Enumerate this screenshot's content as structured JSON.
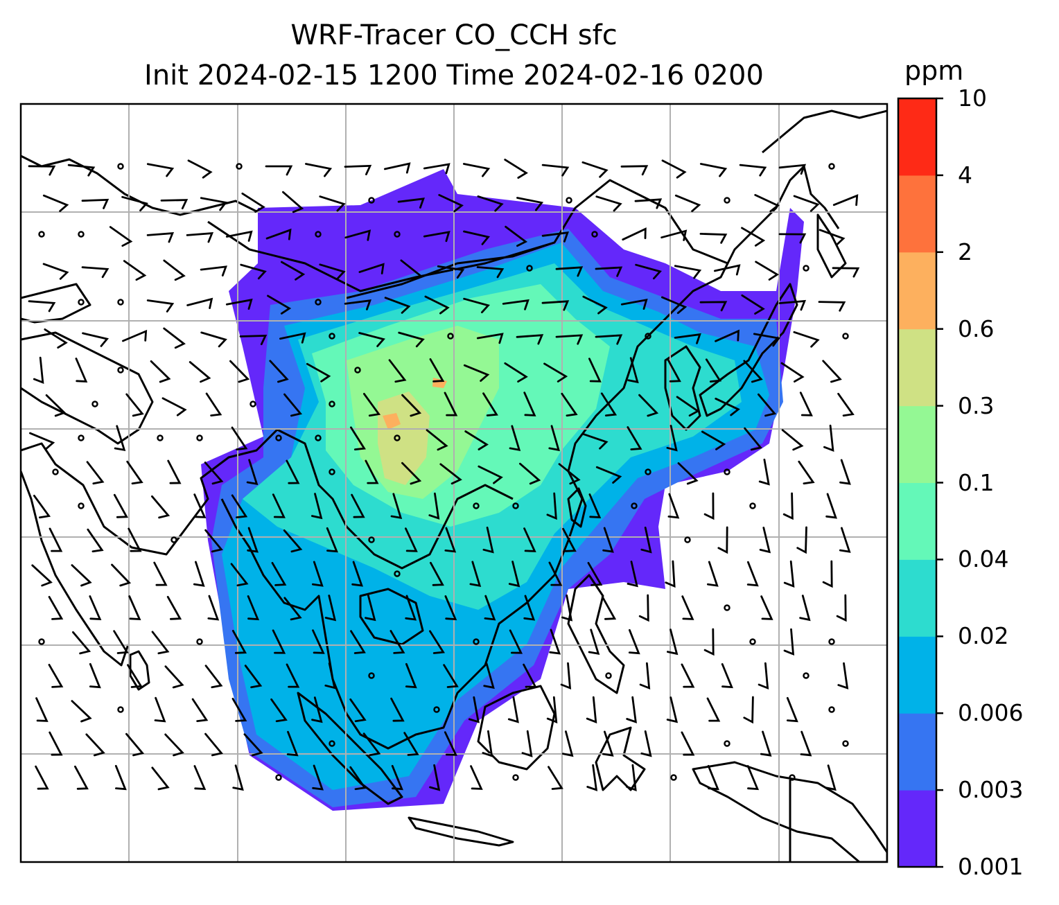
{
  "title": {
    "line1": "WRF-Tracer CO_CCH sfc",
    "line2": "Init 2024-02-15 1200 Time 2024-02-16 0200"
  },
  "colorbar": {
    "unit": "ppm",
    "levels": [
      "0.001",
      "0.003",
      "0.006",
      "0.02",
      "0.04",
      "0.1",
      "0.3",
      "0.6",
      "2",
      "4",
      "10"
    ],
    "colors": [
      "#6428fa",
      "#3675f2",
      "#00b2e8",
      "#2ddccf",
      "#64f8b8",
      "#94f894",
      "#cfe184",
      "#fdb05e",
      "#fe723c",
      "#fe2a16"
    ]
  },
  "map": {
    "gridlines": true,
    "variable": "CO_CCH tracer concentration (surface)",
    "overlay": "wind barbs",
    "coastline_color": "#000000",
    "grid_color": "#b0b0b0"
  }
}
